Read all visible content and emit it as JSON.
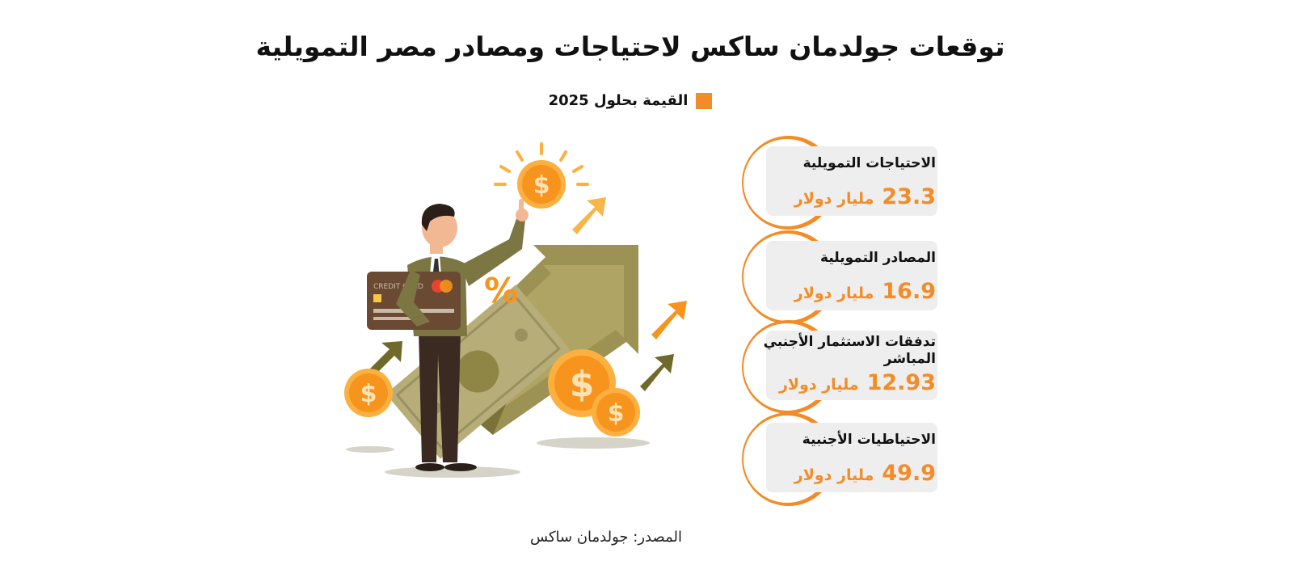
{
  "title": "توقعات جولدمان ساكس لاحتياجات ومصادر مصر التمويلية",
  "legend": {
    "label": "القيمة بحلول 2025",
    "color": "#f28c28"
  },
  "chart_data": {
    "type": "table",
    "title": "توقعات جولدمان ساكس لاحتياجات ومصادر مصر التمويلية",
    "series": [
      {
        "name": "القيمة بحلول 2025",
        "values": [
          23.3,
          16.9,
          12.93,
          49.9
        ]
      }
    ],
    "categories": [
      "الاحتياجات التمويلية",
      "المصادر التمويلية",
      "تدفقات الاستثمار الأجنبي المباشر",
      "الاحتياطيات الأجنبية"
    ],
    "unit": "مليار دولار"
  },
  "cards": [
    {
      "label": "الاحتياجات التمويلية",
      "value": "23.3",
      "unit": "مليار دولار"
    },
    {
      "label": "المصادر التمويلية",
      "value": "16.9",
      "unit": "مليار دولار"
    },
    {
      "label": "تدفقات الاستثمار الأجنبي المباشر",
      "value": "12.93",
      "unit": "مليار دولار"
    },
    {
      "label": "الاحتياطيات الأجنبية",
      "value": "49.9",
      "unit": "مليار دولار"
    }
  ],
  "illustration": {
    "card_text": "CREDIT CARD",
    "percent_sign": "%",
    "coin_symbol": "$"
  },
  "source": "المصدر: جولدمان ساكس"
}
